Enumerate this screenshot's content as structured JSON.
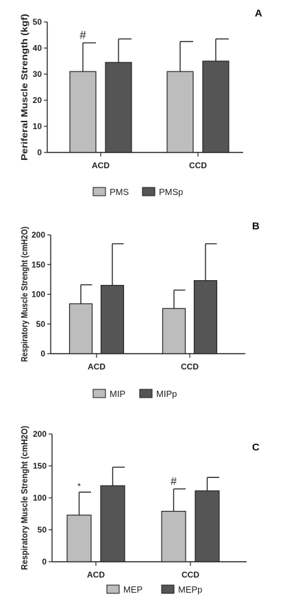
{
  "colors": {
    "light_bar": "#bdbdbd",
    "dark_bar": "#555555",
    "stroke": "#222222"
  },
  "chart_data": [
    {
      "type": "bar",
      "panel": "A",
      "ylabel": "Periferal Muscle Strength (kgf)",
      "ylim": [
        0,
        50
      ],
      "yticks": [
        0,
        10,
        20,
        30,
        40,
        50
      ],
      "categories": [
        "ACD",
        "CCD"
      ],
      "series": [
        {
          "name": "PMS",
          "values": [
            31,
            31
          ],
          "errors": [
            11,
            11.5
          ],
          "color": "light",
          "annotations": [
            "#",
            ""
          ]
        },
        {
          "name": "PMSp",
          "values": [
            34.5,
            35
          ],
          "errors": [
            9,
            8.5
          ],
          "color": "dark",
          "annotations": [
            "",
            ""
          ]
        }
      ],
      "legend": "bottom-center",
      "grid": false
    },
    {
      "type": "bar",
      "panel": "B",
      "ylabel": "Respiratory Muscle Strenght (cmH2O)",
      "ylim": [
        0,
        200
      ],
      "yticks": [
        0,
        50,
        100,
        150,
        200
      ],
      "categories": [
        "ACD",
        "CCD"
      ],
      "series": [
        {
          "name": "MIP",
          "values": [
            84,
            76
          ],
          "errors": [
            32,
            31
          ],
          "color": "light",
          "annotations": [
            "",
            ""
          ]
        },
        {
          "name": "MIPp",
          "values": [
            115,
            123
          ],
          "errors": [
            70,
            62
          ],
          "color": "dark",
          "annotations": [
            "",
            ""
          ]
        }
      ],
      "legend": "bottom-center",
      "grid": false
    },
    {
      "type": "bar",
      "panel": "C",
      "ylabel": "Respiratory Muscle Strenght (cmH2O)",
      "ylim": [
        0,
        200
      ],
      "yticks": [
        0,
        50,
        100,
        150,
        200
      ],
      "categories": [
        "ACD",
        "CCD"
      ],
      "series": [
        {
          "name": "MEP",
          "values": [
            73,
            79
          ],
          "errors": [
            36,
            35
          ],
          "color": "light",
          "annotations": [
            "*",
            "#"
          ]
        },
        {
          "name": "MEPp",
          "values": [
            119,
            111
          ],
          "errors": [
            29,
            21
          ],
          "color": "dark",
          "annotations": [
            "",
            ""
          ]
        }
      ],
      "legend": "bottom-center",
      "grid": false
    }
  ]
}
